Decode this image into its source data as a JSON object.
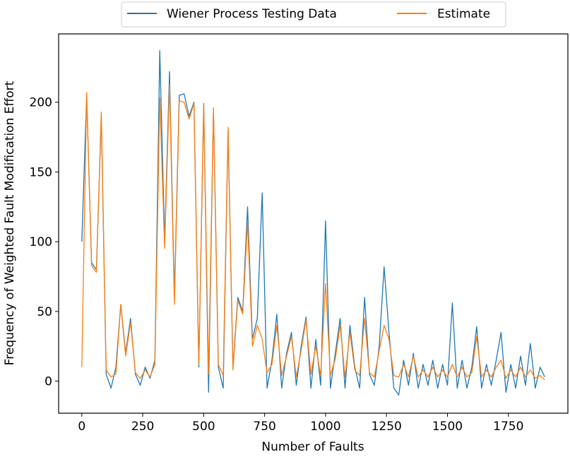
{
  "chart_data": {
    "type": "line",
    "title": "",
    "xlabel": "Number of Faults",
    "ylabel": "Frequency of Weighted Fault Modification Effort",
    "xlim": [
      -95,
      1994
    ],
    "ylim": [
      -23,
      249
    ],
    "xticks": [
      0,
      250,
      500,
      750,
      1000,
      1250,
      1500,
      1750
    ],
    "yticks": [
      0,
      50,
      100,
      150,
      200
    ],
    "grid": false,
    "legend_position": "top-center-outside",
    "x": [
      0,
      20,
      40,
      60,
      80,
      100,
      120,
      140,
      160,
      180,
      200,
      220,
      240,
      260,
      280,
      300,
      320,
      340,
      360,
      380,
      400,
      420,
      440,
      460,
      480,
      500,
      520,
      540,
      560,
      580,
      600,
      620,
      640,
      660,
      680,
      700,
      720,
      740,
      760,
      780,
      800,
      820,
      840,
      860,
      880,
      900,
      920,
      940,
      960,
      980,
      1000,
      1020,
      1040,
      1060,
      1080,
      1100,
      1120,
      1140,
      1160,
      1180,
      1200,
      1220,
      1240,
      1260,
      1280,
      1300,
      1320,
      1340,
      1360,
      1380,
      1400,
      1420,
      1440,
      1460,
      1480,
      1500,
      1520,
      1540,
      1560,
      1580,
      1600,
      1620,
      1640,
      1660,
      1680,
      1700,
      1720,
      1740,
      1760,
      1780,
      1800,
      1820,
      1840,
      1860,
      1880,
      1899
    ],
    "series": [
      {
        "name": "Wiener Process Testing Data",
        "color": "#1f77b4",
        "values": [
          100,
          205,
          85,
          80,
          190,
          5,
          -5,
          10,
          55,
          20,
          45,
          5,
          -3,
          10,
          2,
          15,
          237,
          100,
          222,
          60,
          205,
          206,
          190,
          200,
          10,
          199,
          -8,
          195,
          10,
          -5,
          180,
          10,
          60,
          50,
          125,
          30,
          45,
          135,
          -5,
          15,
          48,
          -5,
          20,
          35,
          -3,
          25,
          46,
          -5,
          30,
          -3,
          115,
          -5,
          20,
          45,
          -5,
          40,
          10,
          -5,
          60,
          5,
          -3,
          25,
          82,
          35,
          -5,
          -10,
          15,
          -3,
          20,
          -5,
          12,
          -3,
          15,
          -5,
          12,
          -3,
          56,
          -5,
          15,
          -5,
          10,
          39,
          -5,
          12,
          -3,
          15,
          35,
          -8,
          12,
          -5,
          18,
          -3,
          27,
          -5,
          10,
          3
        ]
      },
      {
        "name": "Estimate",
        "color": "#ff7f0e",
        "values": [
          10,
          207,
          83,
          78,
          193,
          8,
          3,
          5,
          55,
          18,
          42,
          6,
          2,
          8,
          3,
          12,
          203,
          95,
          213,
          55,
          201,
          200,
          188,
          199,
          12,
          198,
          5,
          196,
          12,
          4,
          182,
          8,
          58,
          48,
          114,
          25,
          40,
          30,
          6,
          12,
          40,
          4,
          18,
          32,
          3,
          22,
          44,
          5,
          25,
          4,
          70,
          4,
          16,
          40,
          3,
          35,
          8,
          4,
          45,
          6,
          3,
          22,
          40,
          30,
          4,
          3,
          12,
          3,
          18,
          3,
          8,
          3,
          10,
          3,
          8,
          3,
          12,
          3,
          10,
          3,
          6,
          32,
          3,
          8,
          3,
          10,
          15,
          2,
          8,
          3,
          10,
          3,
          8,
          2,
          4,
          1
        ]
      }
    ]
  }
}
